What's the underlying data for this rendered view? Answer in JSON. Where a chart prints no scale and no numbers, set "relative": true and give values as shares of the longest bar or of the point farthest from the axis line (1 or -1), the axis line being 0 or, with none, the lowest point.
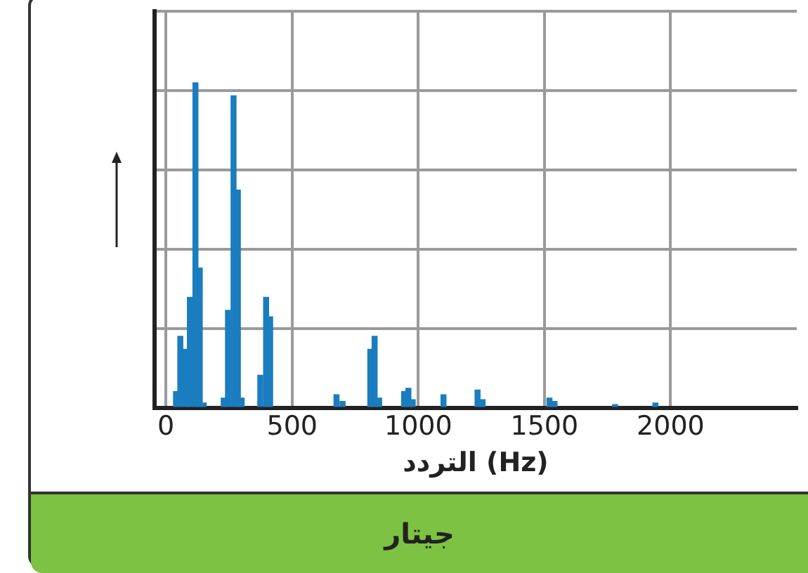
{
  "chart_data": {
    "type": "bar",
    "title": "جيتار",
    "xlabel": "التردد (Hz)",
    "relative": true,
    "color": "#1a7dbf",
    "x": [
      40,
      57,
      78,
      95,
      117,
      134,
      150,
      229,
      246,
      268,
      285,
      300,
      374,
      397,
      413,
      676,
      700,
      810,
      827,
      845,
      944,
      961,
      978,
      1100,
      1235,
      1255,
      1520,
      1540,
      1780,
      1940
    ],
    "values": [
      0.05,
      0.22,
      0.18,
      0.34,
      1,
      0.43,
      0.015,
      0.03,
      0.3,
      0.96,
      0.67,
      0.03,
      0.1,
      0.34,
      0.28,
      0.04,
      0.02,
      0.18,
      0.22,
      0.03,
      0.05,
      0.06,
      0.025,
      0.04,
      0.055,
      0.025,
      0.03,
      0.02,
      0.01,
      0.015
    ],
    "xlim": [
      -45,
      2500
    ],
    "xticks": [
      0,
      500,
      1000,
      1500,
      2000
    ],
    "grid": true,
    "legend": false,
    "tick_labels": "x"
  }
}
